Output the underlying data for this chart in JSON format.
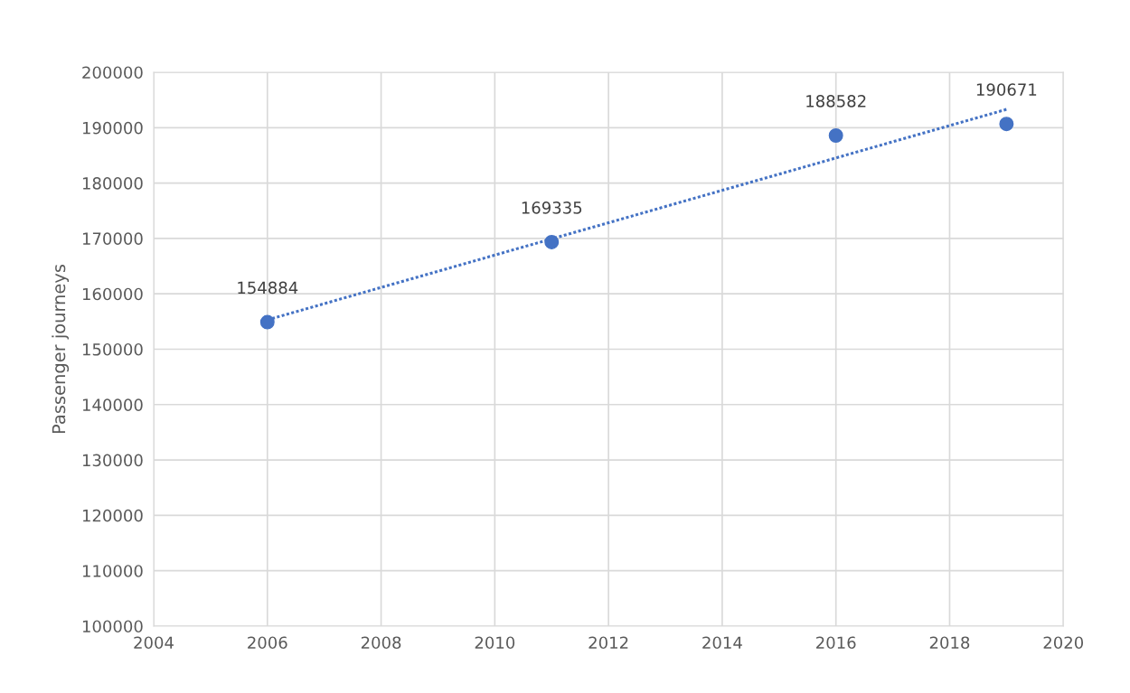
{
  "chart_data": {
    "type": "scatter",
    "ylabel": "Passenger journeys",
    "xlim": [
      2004,
      2020
    ],
    "xticks": [
      2004,
      2006,
      2008,
      2010,
      2012,
      2014,
      2016,
      2018,
      2020
    ],
    "ylim": [
      100000,
      200000
    ],
    "yticks": [
      100000,
      110000,
      120000,
      130000,
      140000,
      150000,
      160000,
      170000,
      180000,
      190000,
      200000
    ],
    "grid": true,
    "series": [
      {
        "marker": "circle",
        "color": "#4472c4",
        "x": [
          2006,
          2011,
          2016,
          2019
        ],
        "values": [
          154884,
          169335,
          188582,
          190671
        ],
        "value_labels": [
          "154884",
          "169335",
          "188582",
          "190671"
        ]
      },
      {
        "type": "line",
        "marker": "none",
        "color": "#4472c4",
        "line_style": "dotted",
        "x": [
          2006,
          2019
        ],
        "values": [
          155300,
          193300
        ]
      }
    ]
  }
}
